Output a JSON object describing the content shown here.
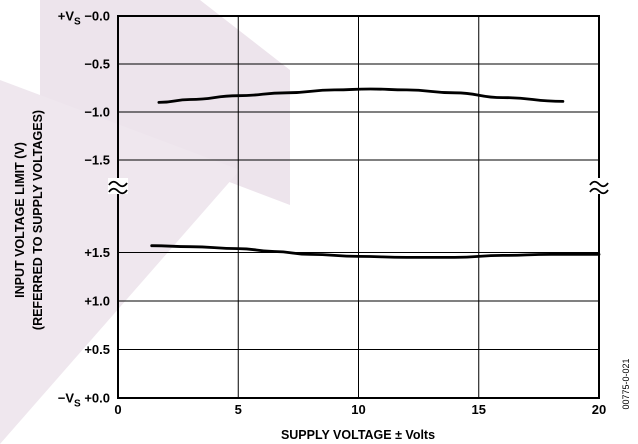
{
  "chart_data": {
    "type": "line",
    "xlabel": "SUPPLY VOLTAGE ± Volts",
    "ylabel_line1": "INPUT VOLTAGE LIMIT (V)",
    "ylabel_line2": "(REFERRED TO SUPPLY VOLTAGES)",
    "xlim": [
      0,
      20
    ],
    "x_ticks": [
      "0",
      "5",
      "10",
      "15",
      "20"
    ],
    "grid": true,
    "upper_panel": {
      "ylim": [
        -2.0,
        0.0
      ],
      "y_ticks": [
        {
          "value": 0.0,
          "prefix": "+V",
          "sub": "S",
          "label": "−0.0"
        },
        {
          "value": -0.5,
          "prefix": "",
          "sub": "",
          "label": "−0.5"
        },
        {
          "value": -1.0,
          "prefix": "",
          "sub": "",
          "label": "−1.0"
        },
        {
          "value": -1.5,
          "prefix": "",
          "sub": "",
          "label": "−1.5"
        }
      ],
      "series": {
        "x": [
          1.7,
          3,
          5,
          7,
          9,
          10.5,
          12,
          14,
          16,
          18.5
        ],
        "values": [
          -0.9,
          -0.87,
          -0.83,
          -0.8,
          -0.77,
          -0.76,
          -0.77,
          -0.8,
          -0.85,
          -0.89
        ]
      }
    },
    "lower_panel": {
      "ylim": [
        0.0,
        2.0
      ],
      "y_ticks": [
        {
          "value": 1.5,
          "prefix": "",
          "sub": "",
          "label": "+1.5"
        },
        {
          "value": 1.0,
          "prefix": "",
          "sub": "",
          "label": "+1.0"
        },
        {
          "value": 0.5,
          "prefix": "",
          "sub": "",
          "label": "+0.5"
        },
        {
          "value": 0.0,
          "prefix": "−V",
          "sub": "S",
          "label": "+0.0"
        }
      ],
      "series": {
        "x": [
          1.4,
          3,
          5,
          6.5,
          8,
          10,
          12,
          14,
          16,
          18,
          20
        ],
        "values": [
          1.57,
          1.56,
          1.54,
          1.51,
          1.48,
          1.46,
          1.45,
          1.45,
          1.47,
          1.48,
          1.48
        ]
      }
    },
    "figure_id": "00775-0-021"
  }
}
